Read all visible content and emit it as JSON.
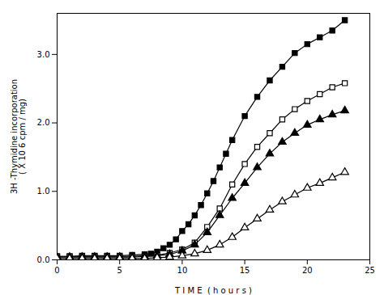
{
  "chart_data": {
    "type": "line",
    "xlabel": "T I M E  ( h o u r s )",
    "ylabel": "3H -Thymidine incorporation\n( X 10 6 cpm / mg)",
    "xlim": [
      0,
      25
    ],
    "ylim": [
      0,
      3.6
    ],
    "xticks": [
      0,
      5,
      10,
      15,
      20,
      25
    ],
    "yticks": [
      0,
      1,
      2,
      3
    ],
    "series": [
      {
        "color": "black",
        "marker": "square",
        "x": [
          0,
          1,
          2,
          3,
          4,
          5,
          6,
          7,
          7.5,
          8,
          8.5,
          9,
          9.5,
          10,
          10.5,
          11,
          11.5,
          12,
          12.5,
          13,
          13.5,
          14,
          15,
          16,
          17,
          18,
          19,
          20,
          21,
          22,
          23
        ],
        "values": [
          0.05,
          0.05,
          0.06,
          0.06,
          0.06,
          0.06,
          0.07,
          0.08,
          0.09,
          0.12,
          0.17,
          0.22,
          0.3,
          0.42,
          0.52,
          0.65,
          0.8,
          0.97,
          1.15,
          1.35,
          1.55,
          1.75,
          2.1,
          2.38,
          2.62,
          2.82,
          3.02,
          3.15,
          3.25,
          3.35,
          3.5
        ]
      },
      {
        "color": "black",
        "marker": "square-open",
        "x": [
          0,
          1,
          2,
          3,
          4,
          5,
          6,
          7,
          8,
          9,
          10,
          11,
          12,
          13,
          14,
          15,
          16,
          17,
          18,
          19,
          20,
          21,
          22,
          23
        ],
        "values": [
          0.05,
          0.05,
          0.05,
          0.05,
          0.05,
          0.05,
          0.05,
          0.06,
          0.07,
          0.1,
          0.15,
          0.25,
          0.48,
          0.75,
          1.1,
          1.4,
          1.65,
          1.85,
          2.05,
          2.2,
          2.32,
          2.42,
          2.52,
          2.58
        ]
      },
      {
        "color": "black",
        "marker": "triangle",
        "x": [
          0,
          1,
          2,
          3,
          4,
          5,
          6,
          7,
          8,
          9,
          10,
          11,
          12,
          13,
          14,
          15,
          16,
          17,
          18,
          19,
          20,
          21,
          22,
          23
        ],
        "values": [
          0.04,
          0.04,
          0.04,
          0.04,
          0.04,
          0.04,
          0.04,
          0.05,
          0.06,
          0.08,
          0.13,
          0.22,
          0.4,
          0.65,
          0.9,
          1.12,
          1.35,
          1.55,
          1.72,
          1.85,
          1.97,
          2.05,
          2.12,
          2.18
        ]
      },
      {
        "color": "black",
        "marker": "triangle-open",
        "x": [
          0,
          1,
          2,
          3,
          4,
          5,
          6,
          7,
          8,
          9,
          10,
          11,
          12,
          13,
          14,
          15,
          16,
          17,
          18,
          19,
          20,
          21,
          22,
          23
        ],
        "values": [
          0.02,
          0.02,
          0.02,
          0.02,
          0.02,
          0.02,
          0.02,
          0.02,
          0.03,
          0.04,
          0.06,
          0.09,
          0.14,
          0.22,
          0.33,
          0.47,
          0.6,
          0.73,
          0.85,
          0.95,
          1.05,
          1.12,
          1.2,
          1.28
        ]
      }
    ]
  }
}
